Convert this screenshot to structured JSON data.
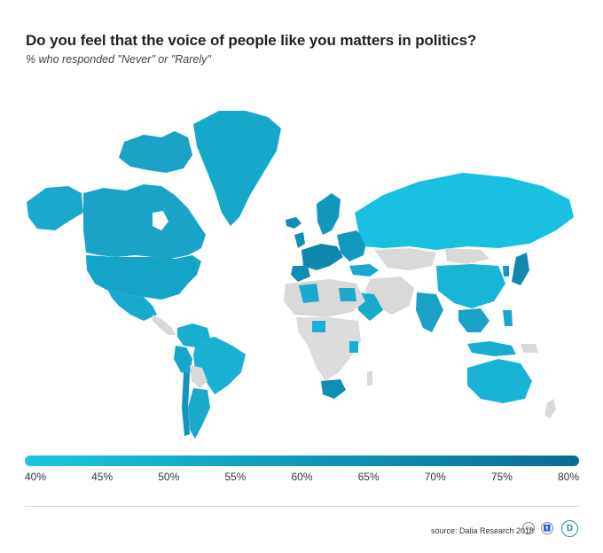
{
  "header": {
    "title": "Do you feel that the voice of people like you matters in politics?",
    "subtitle": "% who responded \"Never\" or \"Rarely\""
  },
  "legend": {
    "labels": [
      "40%",
      "45%",
      "50%",
      "55%",
      "60%",
      "65%",
      "70%",
      "75%",
      "80%"
    ],
    "colors": [
      "#1fc3e3",
      "#19b9da",
      "#15aed1",
      "#12a3c7",
      "#1098bc",
      "#0e8db1",
      "#0c82a6",
      "#0a779b",
      "#086c90"
    ]
  },
  "colors": {
    "no_data": "#e3e3e3",
    "low": "#1fc3e3",
    "mid": "#12a3c7",
    "high": "#0a779b"
  },
  "footer": {
    "source": "source: Dalia Research 2018",
    "cc_icon": "cc-icon",
    "by_icon": "attribution-icon",
    "logo_letter": "D"
  }
}
